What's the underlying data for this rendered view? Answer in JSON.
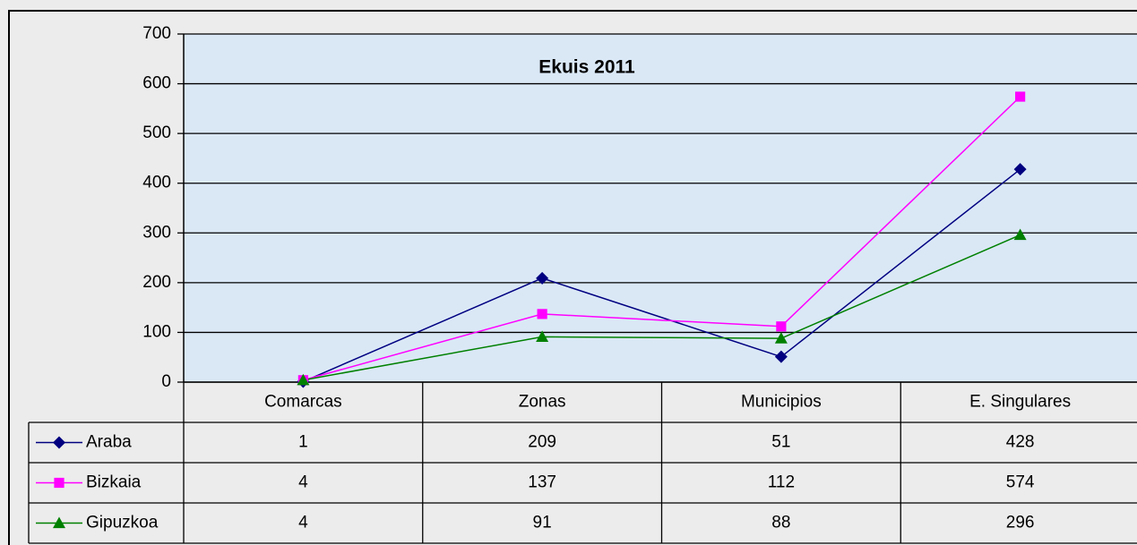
{
  "chart_data": {
    "type": "line",
    "title": "Ekuis 2011",
    "categories": [
      "Comarcas",
      "Zonas",
      "Municipios",
      "E. Singulares"
    ],
    "series": [
      {
        "name": "Araba",
        "color": "#000080",
        "marker": "diamond",
        "values": [
          1,
          209,
          51,
          428
        ]
      },
      {
        "name": "Bizkaia",
        "color": "#ff00ff",
        "marker": "square",
        "values": [
          4,
          137,
          112,
          574
        ]
      },
      {
        "name": "Gipuzkoa",
        "color": "#008000",
        "marker": "triangle",
        "values": [
          4,
          91,
          88,
          296
        ]
      }
    ],
    "ylim": [
      0,
      700
    ],
    "yticks": [
      0,
      100,
      200,
      300,
      400,
      500,
      600,
      700
    ],
    "grid": true,
    "data_table": true
  }
}
